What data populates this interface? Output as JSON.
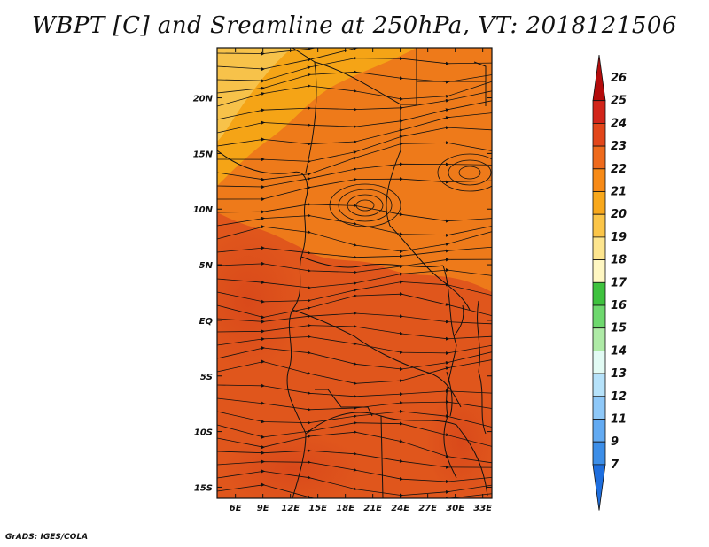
{
  "title": "WBPT [C] and Sreamline at 250hPa, VT: 2018121506",
  "credit": "GrADS: IGES/COLA",
  "map": {
    "lat_labels": [
      "20N",
      "15N",
      "10N",
      "5N",
      "EQ",
      "5S",
      "10S",
      "15S"
    ],
    "lat_values": [
      20,
      15,
      10,
      5,
      0,
      -5,
      -10,
      -15
    ],
    "lon_labels": [
      "6E",
      "9E",
      "12E",
      "15E",
      "18E",
      "21E",
      "24E",
      "27E",
      "30E",
      "33E"
    ],
    "lon_values": [
      6,
      9,
      12,
      15,
      18,
      21,
      24,
      27,
      30,
      33
    ],
    "lon_range": [
      4,
      34
    ],
    "lat_range": [
      -16,
      24.5
    ],
    "field_colors": {
      "c22": "#ee7a1a",
      "c23": "#e0561c",
      "c21": "#f5a416",
      "c20": "#f7c24a"
    }
  },
  "colorbar": {
    "labels": [
      "26",
      "25",
      "24",
      "23",
      "22",
      "21",
      "20",
      "19",
      "18",
      "17",
      "16",
      "15",
      "14",
      "13",
      "12",
      "11",
      "9",
      "7"
    ],
    "colors": [
      "#b40c0c",
      "#d2251a",
      "#e2461a",
      "#ee6a1c",
      "#f78a16",
      "#f8a81c",
      "#fbc548",
      "#fde58e",
      "#fff7c2",
      "#3ec23e",
      "#6ed86e",
      "#aeeaa6",
      "#e2fbf4",
      "#b6e2fa",
      "#8ec8f8",
      "#62aaf2",
      "#3c8ee8",
      "#1e6ede"
    ]
  }
}
